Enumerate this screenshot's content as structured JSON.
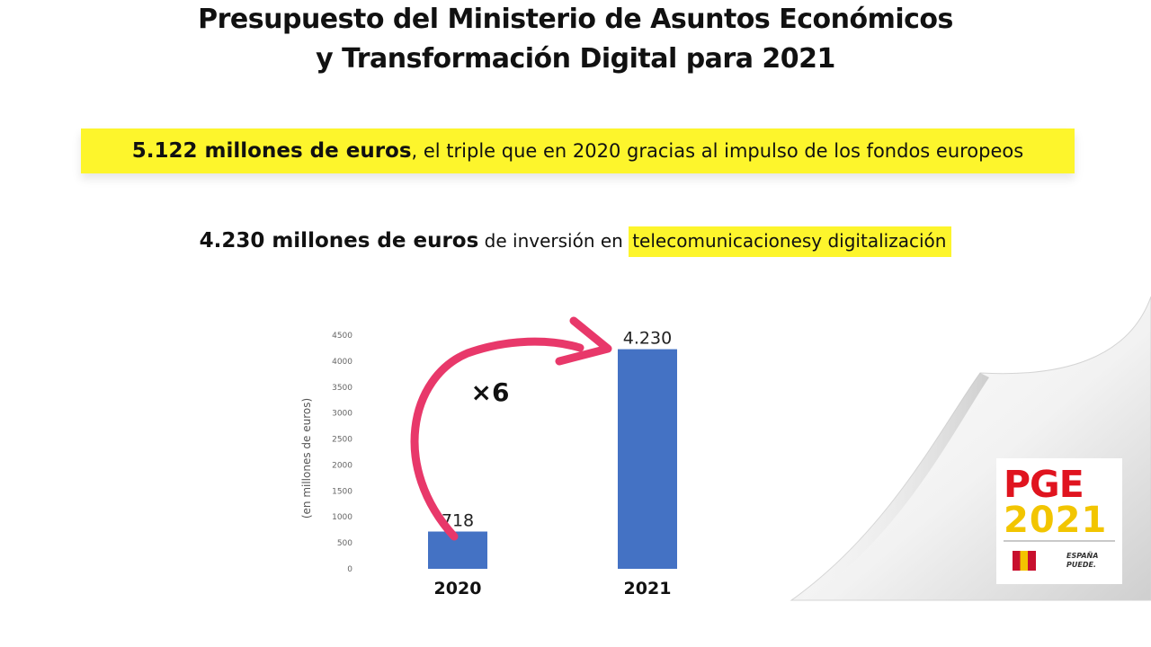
{
  "header": {
    "title_line1": "Presupuesto del Ministerio de Asuntos Económicos",
    "title_line2": "y Transformación Digital para 2021"
  },
  "highlight1": {
    "amount": "5.122 millones de euros",
    "rest": ", el triple que en 2020 gracias al impulso de los fondos europeos"
  },
  "highlight2": {
    "amount": "4.230 millones de euros",
    "middle": " de inversión en ",
    "marked": "telecomunicacionesy digitalización"
  },
  "chart_data": {
    "type": "bar",
    "categories": [
      "2020",
      "2021"
    ],
    "values": [
      718,
      4230
    ],
    "data_labels": [
      "718",
      "4.230"
    ],
    "ylabel": "(en millones de euros)",
    "ylim": [
      0,
      4500
    ],
    "yticks": [
      0,
      500,
      1000,
      1500,
      2000,
      2500,
      3000,
      3500,
      4000,
      4500
    ],
    "grid": false,
    "annotation": "×6",
    "bar_color": "#4472c4",
    "arrow_color": "#e8386a"
  },
  "logo": {
    "pge": "PGE",
    "year": "2021",
    "espana_line1": "ESPAÑA",
    "espana_line2": "PUEDE."
  },
  "colors": {
    "highlight": "#fdf52c",
    "pge_red": "#e0141f",
    "pge_yellow": "#f2c500"
  }
}
